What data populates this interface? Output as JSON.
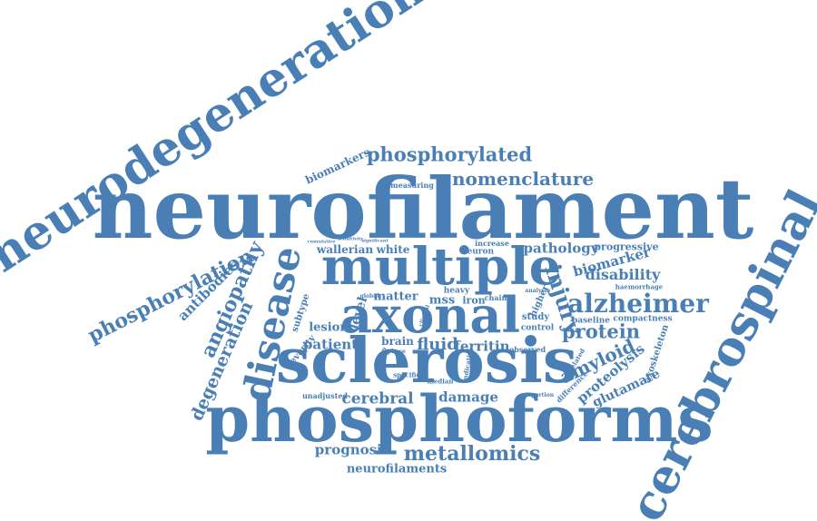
{
  "word_cloud": {
    "text_color": "#4a7fb5",
    "background_color": "#ffffff",
    "words": [
      "neurofilament",
      "neurodegeneration",
      "cerebrospinal",
      "phosphoforms",
      "sclerosis",
      "axonal",
      "multiple",
      "disease",
      "alzheimer",
      "phosphorylated",
      "nomenclature",
      "phosphorylation",
      "angiopathy",
      "injury",
      "protein",
      "amyloid",
      "metallomics",
      "degeneration",
      "antibodies",
      "biomarkers",
      "pathology",
      "biomarker",
      "disability",
      "progressive",
      "fluid",
      "ferritin",
      "patient",
      "cerebral",
      "damage",
      "prognosis",
      "neurofilaments",
      "proteolysis",
      "glutamate",
      "axoskeleton",
      "compactness",
      "baseline",
      "wallerian",
      "white",
      "matter",
      "lesion",
      "level",
      "brain",
      "iron",
      "mss",
      "subtype",
      "severity",
      "study",
      "higher",
      "control",
      "observed",
      "heavy",
      "neuron",
      "increase",
      "chain",
      "measuring",
      "unadjusted",
      "specific",
      "median",
      "difference",
      "correlated",
      "haemorrhage",
      "group",
      "proportion",
      "analysis",
      "indicative",
      "clinical",
      "global",
      "phase",
      "significant",
      "cumulative",
      "sensitivity"
    ]
  }
}
